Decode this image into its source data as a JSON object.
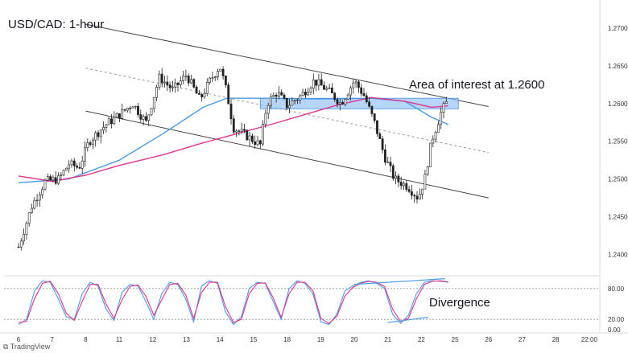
{
  "chart_data": {
    "type": "candlestick",
    "title": "USD/CAD: 1-hour",
    "x_tick_labels": [
      "6",
      "7",
      "8",
      "11",
      "12",
      "13",
      "14",
      "15",
      "18",
      "19",
      "20",
      "21",
      "22",
      "25",
      "26",
      "27",
      "28",
      "22:00"
    ],
    "y_tick_labels": [
      "1.27000",
      "1.26500",
      "1.26000",
      "1.25500",
      "1.25000",
      "1.24500",
      "1.24000"
    ],
    "ylim": [
      1.2375,
      1.2735
    ],
    "price_points": [
      {
        "x": 0,
        "y": 1.241
      },
      {
        "x": 0.4,
        "y": 1.2465
      },
      {
        "x": 0.8,
        "y": 1.2497
      },
      {
        "x": 1.2,
        "y": 1.25
      },
      {
        "x": 1.5,
        "y": 1.252
      },
      {
        "x": 1.8,
        "y": 1.2515
      },
      {
        "x": 2.1,
        "y": 1.255
      },
      {
        "x": 2.6,
        "y": 1.2572
      },
      {
        "x": 3.0,
        "y": 1.2585
      },
      {
        "x": 3.4,
        "y": 1.26
      },
      {
        "x": 3.8,
        "y": 1.2575
      },
      {
        "x": 4.2,
        "y": 1.2635
      },
      {
        "x": 4.6,
        "y": 1.2618
      },
      {
        "x": 5.0,
        "y": 1.2638
      },
      {
        "x": 5.4,
        "y": 1.2605
      },
      {
        "x": 5.7,
        "y": 1.263
      },
      {
        "x": 6.0,
        "y": 1.265
      },
      {
        "x": 6.2,
        "y": 1.2615
      },
      {
        "x": 6.4,
        "y": 1.2568
      },
      {
        "x": 6.8,
        "y": 1.2557
      },
      {
        "x": 7.2,
        "y": 1.2545
      },
      {
        "x": 7.4,
        "y": 1.26
      },
      {
        "x": 7.7,
        "y": 1.2615
      },
      {
        "x": 8.0,
        "y": 1.2597
      },
      {
        "x": 8.4,
        "y": 1.261
      },
      {
        "x": 8.8,
        "y": 1.263
      },
      {
        "x": 9.2,
        "y": 1.2618
      },
      {
        "x": 9.6,
        "y": 1.26
      },
      {
        "x": 10.0,
        "y": 1.263
      },
      {
        "x": 10.3,
        "y": 1.261
      },
      {
        "x": 10.6,
        "y": 1.2575
      },
      {
        "x": 10.9,
        "y": 1.253
      },
      {
        "x": 11.2,
        "y": 1.25
      },
      {
        "x": 11.6,
        "y": 1.249
      },
      {
        "x": 11.9,
        "y": 1.2475
      },
      {
        "x": 12.1,
        "y": 1.25
      },
      {
        "x": 12.3,
        "y": 1.255
      },
      {
        "x": 12.6,
        "y": 1.259
      },
      {
        "x": 12.8,
        "y": 1.2605
      }
    ],
    "moving_averages": [
      {
        "color": "#4a9be8",
        "points": [
          {
            "x": 0,
            "y": 1.2495
          },
          {
            "x": 1.5,
            "y": 1.25
          },
          {
            "x": 3.0,
            "y": 1.2525
          },
          {
            "x": 4.3,
            "y": 1.256
          },
          {
            "x": 5.5,
            "y": 1.2595
          },
          {
            "x": 6.2,
            "y": 1.2607
          },
          {
            "x": 7.5,
            "y": 1.2607
          },
          {
            "x": 9.0,
            "y": 1.2606
          },
          {
            "x": 10.5,
            "y": 1.2607
          },
          {
            "x": 11.5,
            "y": 1.2603
          },
          {
            "x": 12.3,
            "y": 1.2582
          },
          {
            "x": 12.8,
            "y": 1.2572
          }
        ]
      },
      {
        "color": "#e0348f",
        "points": [
          {
            "x": 0,
            "y": 1.2504
          },
          {
            "x": 1.0,
            "y": 1.2497
          },
          {
            "x": 2.0,
            "y": 1.2505
          },
          {
            "x": 3.0,
            "y": 1.2518
          },
          {
            "x": 4.3,
            "y": 1.2532
          },
          {
            "x": 5.5,
            "y": 1.2548
          },
          {
            "x": 6.5,
            "y": 1.256
          },
          {
            "x": 7.5,
            "y": 1.2572
          },
          {
            "x": 8.5,
            "y": 1.2585
          },
          {
            "x": 9.5,
            "y": 1.2598
          },
          {
            "x": 10.5,
            "y": 1.2608
          },
          {
            "x": 11.5,
            "y": 1.2603
          },
          {
            "x": 12.3,
            "y": 1.2595
          },
          {
            "x": 12.8,
            "y": 1.2597
          }
        ]
      }
    ],
    "channel_lines": [
      {
        "style": "solid",
        "points": [
          {
            "x": 2.0,
            "y": 1.2705
          },
          {
            "x": 14.0,
            "y": 1.2596
          }
        ]
      },
      {
        "style": "dashed",
        "points": [
          {
            "x": 2.0,
            "y": 1.2647
          },
          {
            "x": 14.0,
            "y": 1.2535
          }
        ]
      },
      {
        "style": "solid",
        "points": [
          {
            "x": 2.0,
            "y": 1.259
          },
          {
            "x": 14.0,
            "y": 1.2475
          }
        ]
      }
    ],
    "zone": {
      "label": "Area of interest at 1.2600",
      "x0": 7.2,
      "x1": 13.1,
      "y0": 1.2593,
      "y1": 1.2607,
      "color": "#90bff5"
    },
    "oscillator": {
      "ylim": [
        0,
        100
      ],
      "tick_labels": [
        "80.00",
        "20.00",
        "0.00"
      ],
      "levels": [
        80,
        20
      ],
      "series": [
        {
          "color": "#4a9be8",
          "values": [
            10,
            20,
            75,
            95,
            92,
            60,
            25,
            20,
            70,
            92,
            85,
            40,
            18,
            72,
            88,
            85,
            55,
            20,
            70,
            92,
            88,
            60,
            15,
            85,
            95,
            90,
            35,
            10,
            25,
            80,
            92,
            90,
            55,
            20,
            80,
            95,
            90,
            70,
            15,
            10,
            30,
            75,
            85,
            92,
            95,
            90,
            80,
            30,
            12,
            28,
            70,
            92,
            95,
            94,
            92
          ]
        },
        {
          "color": "#e0348f",
          "values": [
            14,
            16,
            60,
            90,
            94,
            70,
            32,
            18,
            55,
            88,
            88,
            50,
            22,
            58,
            84,
            87,
            65,
            28,
            58,
            88,
            90,
            68,
            22,
            72,
            92,
            92,
            45,
            14,
            20,
            70,
            90,
            91,
            62,
            24,
            70,
            92,
            92,
            76,
            22,
            12,
            26,
            65,
            82,
            90,
            94,
            92,
            84,
            40,
            16,
            22,
            60,
            88,
            94,
            95,
            93
          ]
        }
      ],
      "annotation": "Divergence",
      "divergence_lines": [
        {
          "color": "#4a9be8",
          "points": [
            {
              "x": 10.0,
              "y": 88
            },
            {
              "x": 12.7,
              "y": 99
            }
          ]
        },
        {
          "color": "#4a9be8",
          "points": [
            {
              "x": 11.0,
              "y": 14
            },
            {
              "x": 12.2,
              "y": 24
            }
          ]
        }
      ]
    }
  },
  "branding": {
    "text": "TradingView",
    "logo": "tradingview-logo-icon"
  }
}
